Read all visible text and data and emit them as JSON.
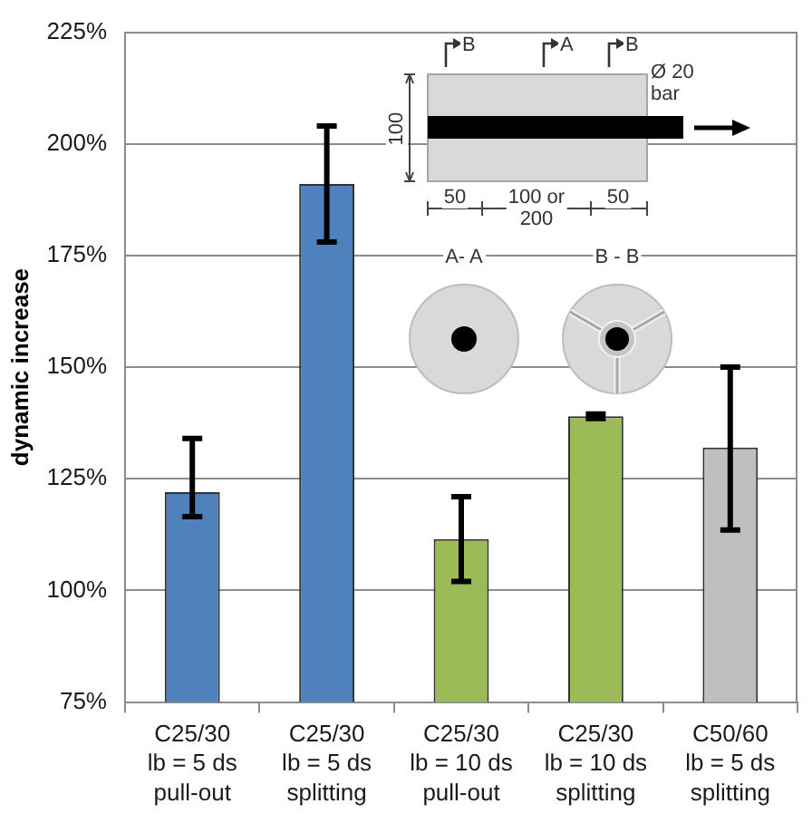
{
  "chart_data": {
    "type": "bar",
    "ylabel": "dynamic increase",
    "categories": [
      "C25/30\nlb = 5 ds\npull-out",
      "C25/30\nlb = 5 ds\nsplitting",
      "C25/30\nlb = 10 ds\npull-out",
      "C25/30\nlb = 10 ds\nsplitting",
      "C50/60\nlb = 5 ds\nsplitting"
    ],
    "values": [
      122,
      191,
      111.5,
      139,
      132
    ],
    "colors": [
      "#4f81bd",
      "#4f81bd",
      "#9bbb59",
      "#9bbb59",
      "#bfbfbf"
    ],
    "errors": [
      [
        116.5,
        134
      ],
      [
        178,
        204
      ],
      [
        102,
        121
      ],
      [
        138.5,
        139.5
      ],
      [
        113.5,
        150
      ]
    ],
    "ylim": [
      75,
      225
    ],
    "yticks": [
      {
        "value": 75,
        "label": "75%"
      },
      {
        "value": 100,
        "label": "100%"
      },
      {
        "value": 125,
        "label": "125%"
      },
      {
        "value": 150,
        "label": "150%"
      },
      {
        "value": 175,
        "label": "175%"
      },
      {
        "value": 200,
        "label": "200%"
      },
      {
        "value": 225,
        "label": "225%"
      }
    ],
    "grid": "y",
    "legend": false,
    "annotations": [
      "B",
      "A",
      "B",
      "Ø 20 bar",
      "100",
      "50",
      "100 or 200",
      "50",
      "A- A",
      "B - B"
    ]
  }
}
